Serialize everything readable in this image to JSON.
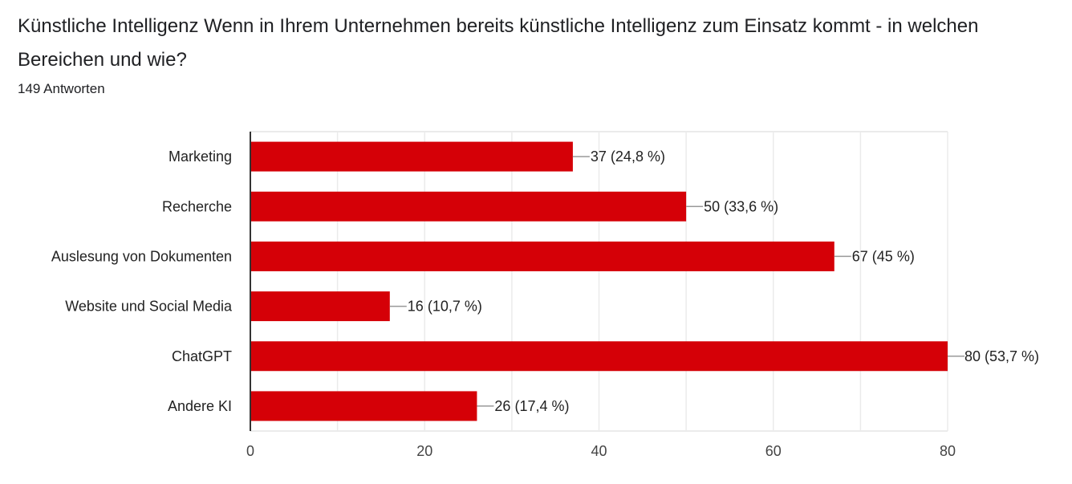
{
  "header": {
    "title": "Künstliche Intelligenz Wenn in Ihrem Unternehmen bereits künstliche Intelligenz zum Einsatz kommt - in welchen Bereichen und wie?",
    "responses": "149 Antworten"
  },
  "colors": {
    "bar": "#d50007",
    "grid": "#ebebeb",
    "axis": "#333333",
    "leader": "#999999"
  },
  "chart_data": {
    "type": "bar",
    "orientation": "horizontal",
    "title": "Künstliche Intelligenz Wenn in Ihrem Unternehmen bereits künstliche Intelligenz zum Einsatz kommt - in welchen Bereichen und wie?",
    "subtitle": "149 Antworten",
    "xlabel": "",
    "ylabel": "",
    "categories": [
      "Marketing",
      "Recherche",
      "Auslesung von Dokumenten",
      "Website und Social Media",
      "ChatGPT",
      "Andere KI"
    ],
    "values": [
      37,
      50,
      67,
      16,
      80,
      26
    ],
    "percent_labels": [
      "37 (24,8 %)",
      "50 (33,6 %)",
      "67 (45 %)",
      "16 (10,7 %)",
      "80 (53,7 %)",
      "26 (17,4 %)"
    ],
    "xlim": [
      0,
      80
    ],
    "xticks": [
      0,
      20,
      40,
      60,
      80
    ],
    "minor_grid_step": 10,
    "grid": true,
    "legend": "none"
  }
}
